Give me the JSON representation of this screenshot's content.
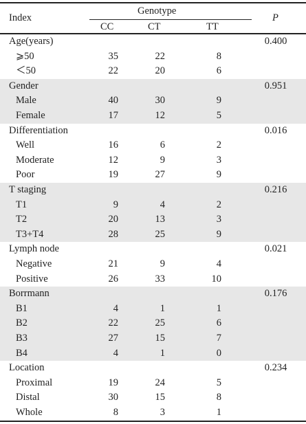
{
  "table": {
    "header": {
      "index": "Index",
      "genotype": "Genotype",
      "p": "P",
      "cc": "CC",
      "ct": "CT",
      "tt": "TT"
    },
    "rows": [
      {
        "label": "Age(years)",
        "cc": "",
        "ct": "",
        "tt": "",
        "p": "0.400",
        "indent": false,
        "shade": false
      },
      {
        "label": "⩾50",
        "cc": "35",
        "ct": "22",
        "tt": "8",
        "p": "",
        "indent": true,
        "shade": false
      },
      {
        "label": "＜50",
        "cc": "22",
        "ct": "20",
        "tt": "6",
        "p": "",
        "indent": true,
        "shade": false
      },
      {
        "label": "Gender",
        "cc": "",
        "ct": "",
        "tt": "",
        "p": "0.951",
        "indent": false,
        "shade": true
      },
      {
        "label": "Male",
        "cc": "40",
        "ct": "30",
        "tt": "9",
        "p": "",
        "indent": true,
        "shade": true
      },
      {
        "label": "Female",
        "cc": "17",
        "ct": "12",
        "tt": "5",
        "p": "",
        "indent": true,
        "shade": true
      },
      {
        "label": "Differentiation",
        "cc": "",
        "ct": "",
        "tt": "",
        "p": "0.016",
        "indent": false,
        "shade": false
      },
      {
        "label": "Well",
        "cc": "16",
        "ct": "6",
        "tt": "2",
        "p": "",
        "indent": true,
        "shade": false
      },
      {
        "label": "Moderate",
        "cc": "12",
        "ct": "9",
        "tt": "3",
        "p": "",
        "indent": true,
        "shade": false
      },
      {
        "label": "Poor",
        "cc": "19",
        "ct": "27",
        "tt": "9",
        "p": "",
        "indent": true,
        "shade": false
      },
      {
        "label": "T staging",
        "cc": "",
        "ct": "",
        "tt": "",
        "p": "0.216",
        "indent": false,
        "shade": true
      },
      {
        "label": "T1",
        "cc": "9",
        "ct": "4",
        "tt": "2",
        "p": "",
        "indent": true,
        "shade": true
      },
      {
        "label": "T2",
        "cc": "20",
        "ct": "13",
        "tt": "3",
        "p": "",
        "indent": true,
        "shade": true
      },
      {
        "label": "T3+T4",
        "cc": "28",
        "ct": "25",
        "tt": "9",
        "p": "",
        "indent": true,
        "shade": true
      },
      {
        "label": "Lymph node",
        "cc": "",
        "ct": "",
        "tt": "",
        "p": "0.021",
        "indent": false,
        "shade": false
      },
      {
        "label": "Negative",
        "cc": "21",
        "ct": "9",
        "tt": "4",
        "p": "",
        "indent": true,
        "shade": false
      },
      {
        "label": "Positive",
        "cc": "26",
        "ct": "33",
        "tt": "10",
        "p": "",
        "indent": true,
        "shade": false
      },
      {
        "label": "Borrmann",
        "cc": "",
        "ct": "",
        "tt": "",
        "p": "0.176",
        "indent": false,
        "shade": true
      },
      {
        "label": "B1",
        "cc": "4",
        "ct": "1",
        "tt": "1",
        "p": "",
        "indent": true,
        "shade": true
      },
      {
        "label": "B2",
        "cc": "22",
        "ct": "25",
        "tt": "6",
        "p": "",
        "indent": true,
        "shade": true
      },
      {
        "label": "B3",
        "cc": "27",
        "ct": "15",
        "tt": "7",
        "p": "",
        "indent": true,
        "shade": true
      },
      {
        "label": "B4",
        "cc": "4",
        "ct": "1",
        "tt": "0",
        "p": "",
        "indent": true,
        "shade": true
      },
      {
        "label": "Location",
        "cc": "",
        "ct": "",
        "tt": "",
        "p": "0.234",
        "indent": false,
        "shade": false
      },
      {
        "label": "Proximal",
        "cc": "19",
        "ct": "24",
        "tt": "5",
        "p": "",
        "indent": true,
        "shade": false
      },
      {
        "label": "Distal",
        "cc": "30",
        "ct": "15",
        "tt": "8",
        "p": "",
        "indent": true,
        "shade": false
      },
      {
        "label": "Whole",
        "cc": "8",
        "ct": "3",
        "tt": "1",
        "p": "",
        "indent": true,
        "shade": false
      }
    ]
  }
}
